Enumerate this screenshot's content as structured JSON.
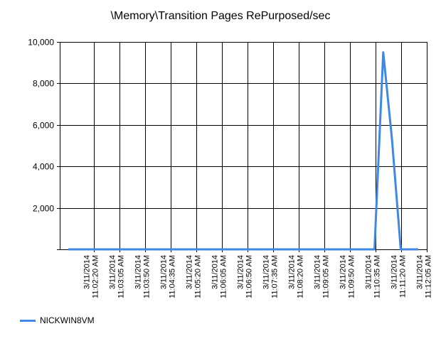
{
  "colors": {
    "series": "#3f88e6",
    "grid": "#000000",
    "background": "#ffffff"
  },
  "chart_data": {
    "type": "line",
    "title": "\\Memory\\Transition Pages RePurposed/sec",
    "xlabel": "",
    "ylabel": "",
    "ylim": [
      0,
      10000
    ],
    "y_ticks": [
      "10,000",
      "8,000",
      "6,000",
      "4,000",
      "2,000"
    ],
    "y_tick_values": [
      10000,
      8000,
      6000,
      4000,
      2000
    ],
    "x_tick_labels": [
      [
        "3/11/2014",
        "11:02:20 AM"
      ],
      [
        "3/11/2014",
        "11:03:05 AM"
      ],
      [
        "3/11/2014",
        "11:03:50 AM"
      ],
      [
        "3/11/2014",
        "11:04:35 AM"
      ],
      [
        "3/11/2014",
        "11:05:20 AM"
      ],
      [
        "3/11/2014",
        "11:06:05 AM"
      ],
      [
        "3/11/2014",
        "11:06:50 AM"
      ],
      [
        "3/11/2014",
        "11:07:35 AM"
      ],
      [
        "3/11/2014",
        "11:08:20 AM"
      ],
      [
        "3/11/2014",
        "11:09:05 AM"
      ],
      [
        "3/11/2014",
        "11:09:50 AM"
      ],
      [
        "3/11/2014",
        "11:10:35 AM"
      ],
      [
        "3/11/2014",
        "11:11:20 AM"
      ],
      [
        "3/11/2014",
        "11:12:05 AM"
      ]
    ],
    "grid": true,
    "legend_position": "bottom-left",
    "series": [
      {
        "name": "NICKWIN8VM",
        "x": [
          "11:02:05 AM",
          "11:02:20 AM",
          "11:02:35 AM",
          "11:02:50 AM",
          "11:03:05 AM",
          "11:03:20 AM",
          "11:03:35 AM",
          "11:03:50 AM",
          "11:04:05 AM",
          "11:04:20 AM",
          "11:04:35 AM",
          "11:04:50 AM",
          "11:05:05 AM",
          "11:05:20 AM",
          "11:05:35 AM",
          "11:05:50 AM",
          "11:06:05 AM",
          "11:06:20 AM",
          "11:06:35 AM",
          "11:06:50 AM",
          "11:07:05 AM",
          "11:07:20 AM",
          "11:07:35 AM",
          "11:07:50 AM",
          "11:08:05 AM",
          "11:08:20 AM",
          "11:08:35 AM",
          "11:08:50 AM",
          "11:09:05 AM",
          "11:09:20 AM",
          "11:09:35 AM",
          "11:09:50 AM",
          "11:10:05 AM",
          "11:10:20 AM",
          "11:10:35 AM",
          "11:10:50 AM",
          "11:11:05 AM",
          "11:11:20 AM",
          "11:11:35 AM",
          "11:11:50 AM",
          "11:12:05 AM"
        ],
        "values": [
          0,
          0,
          0,
          0,
          0,
          0,
          0,
          0,
          0,
          0,
          0,
          0,
          0,
          0,
          0,
          0,
          0,
          0,
          0,
          0,
          0,
          0,
          0,
          0,
          0,
          0,
          0,
          0,
          0,
          0,
          0,
          0,
          0,
          0,
          0,
          0,
          9500,
          5300,
          0,
          0,
          0
        ]
      }
    ]
  }
}
